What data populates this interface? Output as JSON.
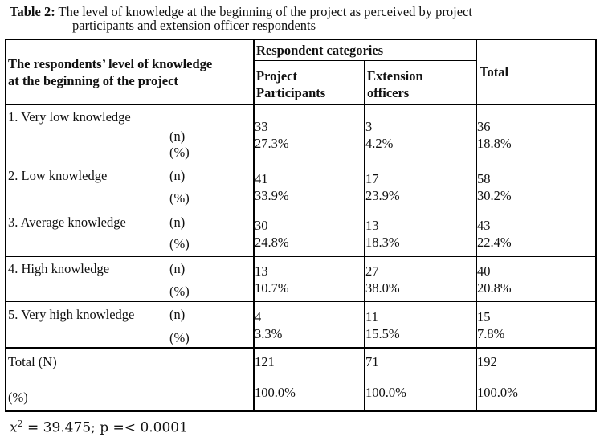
{
  "caption": {
    "label": "Table 2:",
    "line1": "The level of knowledge at the beginning of the project as perceived by project",
    "line2": "participants and extension officer respondents"
  },
  "header": {
    "row_label_l1": "The respondents’ level of knowledge",
    "row_label_l2": "at the beginning of the project",
    "group": "Respondent categories",
    "col1_l1": "Project",
    "col1_l2": "Participants",
    "col2_l1": "Extension",
    "col2_l2": "officers",
    "total": "Total"
  },
  "rows": [
    {
      "label": "1. Very low knowledge",
      "n_tag": "(n)",
      "pct_tag": "(%)",
      "c1_n": "33",
      "c1_p": "27.3%",
      "c2_n": "3",
      "c2_p": "4.2%",
      "t_n": "36",
      "t_p": "18.8%"
    },
    {
      "label": "2. Low knowledge",
      "n_tag": "(n)",
      "pct_tag": "(%)",
      "c1_n": "41",
      "c1_p": "33.9%",
      "c2_n": "17",
      "c2_p": "23.9%",
      "t_n": "58",
      "t_p": "30.2%"
    },
    {
      "label": "3. Average knowledge",
      "n_tag": "(n)",
      "pct_tag": "(%)",
      "c1_n": "30",
      "c1_p": "24.8%",
      "c2_n": "13",
      "c2_p": "18.3%",
      "t_n": "43",
      "t_p": "22.4%"
    },
    {
      "label": "4. High knowledge",
      "n_tag": "(n)",
      "pct_tag": "(%)",
      "c1_n": "13",
      "c1_p": "10.7%",
      "c2_n": "27",
      "c2_p": "38.0%",
      "t_n": "40",
      "t_p": "20.8%"
    },
    {
      "label": "5. Very high knowledge",
      "n_tag": "(n)",
      "pct_tag": "(%)",
      "c1_n": "4",
      "c1_p": "3.3%",
      "c2_n": "11",
      "c2_p": "15.5%",
      "t_n": "15",
      "t_p": "7.8%"
    }
  ],
  "total_row": {
    "label": "Total (N)",
    "pct_tag": "(%)",
    "c1_n": "121",
    "c1_p": "100.0%",
    "c2_n": "71",
    "c2_p": "100.0%",
    "t_n": "192",
    "t_p": "100.0%"
  },
  "footer": {
    "symbol": "x",
    "exp": "2",
    "text": " = 39.475; p =< 0.0001"
  }
}
